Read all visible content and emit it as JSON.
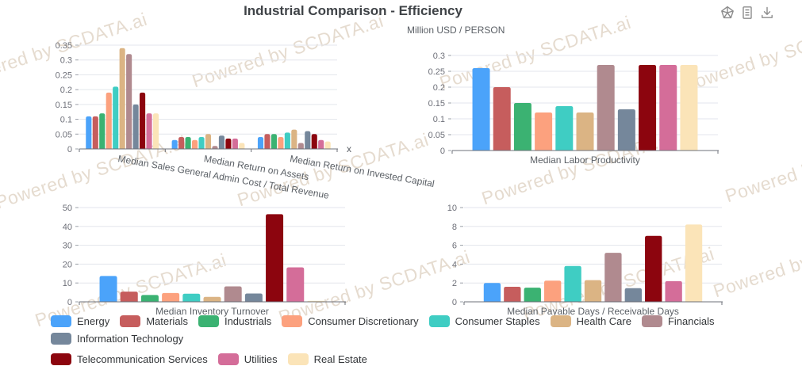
{
  "title": "Industrial Comparison - Efficiency",
  "watermark": {
    "text": "Powered by SCDATA.ai",
    "color": "#CDB9A0"
  },
  "toolbar": {
    "icons": [
      {
        "name": "chart-type-icon"
      },
      {
        "name": "data-view-icon"
      },
      {
        "name": "download-icon"
      }
    ]
  },
  "legend": {
    "position": "bottom",
    "items": [
      {
        "label": "Energy",
        "color": "#4BA3FA"
      },
      {
        "label": "Materials",
        "color": "#C65D5D"
      },
      {
        "label": "Industrials",
        "color": "#3BB272"
      },
      {
        "label": "Consumer Discretionary",
        "color": "#FCA17E"
      },
      {
        "label": "Consumer Staples",
        "color": "#3FCDC3"
      },
      {
        "label": "Health Care",
        "color": "#DBB484"
      },
      {
        "label": "Financials",
        "color": "#B08A8F"
      },
      {
        "label": "Information Technology",
        "color": "#75879B"
      },
      {
        "label": "Telecommunication Services",
        "color": "#8C050E"
      },
      {
        "label": "Utilities",
        "color": "#D46D99"
      },
      {
        "label": "Real Estate",
        "color": "#FBE4B8"
      }
    ]
  },
  "chart_data": [
    {
      "type": "bar",
      "title": "",
      "xlabel": "x",
      "ylabel": "",
      "ylim": [
        0,
        0.35
      ],
      "ystep": 0.05,
      "grid": true,
      "categories": [
        "Median Sales General Admin Cost / Total Revenue",
        "Median Return on Assets",
        "Median Return on Invested Capital"
      ],
      "series": [
        {
          "name": "Energy",
          "values": [
            0.11,
            0.03,
            0.04
          ]
        },
        {
          "name": "Materials",
          "values": [
            0.11,
            0.04,
            0.05
          ]
        },
        {
          "name": "Industrials",
          "values": [
            0.12,
            0.04,
            0.05
          ]
        },
        {
          "name": "Consumer Discretionary",
          "values": [
            0.19,
            0.03,
            0.04
          ]
        },
        {
          "name": "Consumer Staples",
          "values": [
            0.21,
            0.04,
            0.055
          ]
        },
        {
          "name": "Health Care",
          "values": [
            0.34,
            0.05,
            0.065
          ]
        },
        {
          "name": "Financials",
          "values": [
            0.32,
            0.01,
            0.02
          ]
        },
        {
          "name": "Information Technology",
          "values": [
            0.15,
            0.045,
            0.06
          ]
        },
        {
          "name": "Telecommunication Services",
          "values": [
            0.19,
            0.035,
            0.05
          ]
        },
        {
          "name": "Utilities",
          "values": [
            0.12,
            0.035,
            0.03
          ]
        },
        {
          "name": "Real Estate",
          "values": [
            0.12,
            0.02,
            0.025
          ]
        }
      ]
    },
    {
      "type": "bar",
      "title": "Million USD / PERSON",
      "xlabel": "",
      "ylabel": "",
      "ylim": [
        0,
        0.3
      ],
      "ystep": 0.05,
      "grid": true,
      "categories": [
        "Median Labor Productivity"
      ],
      "series": [
        {
          "name": "Energy",
          "values": [
            0.26
          ]
        },
        {
          "name": "Materials",
          "values": [
            0.2
          ]
        },
        {
          "name": "Industrials",
          "values": [
            0.15
          ]
        },
        {
          "name": "Consumer Discretionary",
          "values": [
            0.12
          ]
        },
        {
          "name": "Consumer Staples",
          "values": [
            0.14
          ]
        },
        {
          "name": "Health Care",
          "values": [
            0.12
          ]
        },
        {
          "name": "Financials",
          "values": [
            0.27
          ]
        },
        {
          "name": "Information Technology",
          "values": [
            0.13
          ]
        },
        {
          "name": "Telecommunication Services",
          "values": [
            0.27
          ]
        },
        {
          "name": "Utilities",
          "values": [
            0.27
          ]
        },
        {
          "name": "Real Estate",
          "values": [
            0.27
          ]
        }
      ]
    },
    {
      "type": "bar",
      "title": "",
      "xlabel": "",
      "ylabel": "",
      "ylim": [
        0,
        50
      ],
      "ystep": 10,
      "grid": true,
      "categories": [
        "Median Inventory Turnover"
      ],
      "series": [
        {
          "name": "Energy",
          "values": [
            13.7
          ]
        },
        {
          "name": "Materials",
          "values": [
            5.4
          ]
        },
        {
          "name": "Industrials",
          "values": [
            3.6
          ]
        },
        {
          "name": "Consumer Discretionary",
          "values": [
            4.7
          ]
        },
        {
          "name": "Consumer Staples",
          "values": [
            4.3
          ]
        },
        {
          "name": "Health Care",
          "values": [
            2.6
          ]
        },
        {
          "name": "Financials",
          "values": [
            8.2
          ]
        },
        {
          "name": "Information Technology",
          "values": [
            4.4
          ]
        },
        {
          "name": "Telecommunication Services",
          "values": [
            46.5
          ]
        },
        {
          "name": "Utilities",
          "values": [
            18.3
          ]
        },
        {
          "name": "Real Estate",
          "values": [
            0.5
          ]
        }
      ]
    },
    {
      "type": "bar",
      "title": "",
      "xlabel": "",
      "ylabel": "",
      "ylim": [
        0,
        10
      ],
      "ystep": 2,
      "grid": true,
      "categories": [
        "Median Payable Days / Receivable Days"
      ],
      "series": [
        {
          "name": "Energy",
          "values": [
            2.0
          ]
        },
        {
          "name": "Materials",
          "values": [
            1.6
          ]
        },
        {
          "name": "Industrials",
          "values": [
            1.5
          ]
        },
        {
          "name": "Consumer Discretionary",
          "values": [
            2.25
          ]
        },
        {
          "name": "Consumer Staples",
          "values": [
            3.8
          ]
        },
        {
          "name": "Health Care",
          "values": [
            2.3
          ]
        },
        {
          "name": "Financials",
          "values": [
            5.2
          ]
        },
        {
          "name": "Information Technology",
          "values": [
            1.45
          ]
        },
        {
          "name": "Telecommunication Services",
          "values": [
            7.0
          ]
        },
        {
          "name": "Utilities",
          "values": [
            2.2
          ]
        },
        {
          "name": "Real Estate",
          "values": [
            8.2
          ]
        }
      ]
    }
  ]
}
